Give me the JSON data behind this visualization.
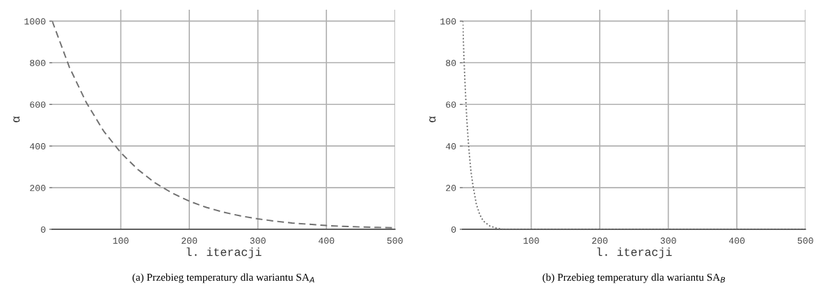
{
  "chart_data": [
    {
      "type": "line",
      "xlabel": "l. iteracji",
      "ylabel": "α",
      "annotations": [
        "(a) Przebieg temperatury dla wariantu SA$_{A}$"
      ],
      "x": [
        0,
        25,
        50,
        75,
        100,
        125,
        150,
        175,
        200,
        225,
        250,
        275,
        300,
        325,
        350,
        375,
        400,
        425,
        450,
        475,
        500
      ],
      "series": [
        {
          "color": "#707070",
          "values": [
            1000,
            779,
            607,
            472,
            368,
            287,
            223,
            174,
            135,
            105,
            82,
            64,
            50,
            39,
            30,
            24,
            18,
            14,
            11,
            9,
            7
          ]
        }
      ],
      "line_style": "dashed",
      "xlim": [
        0,
        500
      ],
      "ylim": [
        0,
        1055
      ],
      "xticks": [
        100,
        200,
        300,
        400,
        500
      ],
      "yticks": [
        0,
        200,
        400,
        600,
        800,
        1000
      ],
      "grid": true
    },
    {
      "type": "line",
      "xlabel": "l. iteracji",
      "ylabel": "α",
      "annotations": [
        "(b) Przebieg temperatury dla wariantu SA$_{B}$"
      ],
      "x": [
        0,
        2,
        4,
        6,
        8,
        10,
        12,
        15,
        20,
        25,
        30,
        40,
        50,
        60,
        80,
        100,
        200,
        300,
        400,
        500
      ],
      "series": [
        {
          "color": "#707070",
          "values": [
            100,
            81,
            66,
            53,
            43,
            35,
            28,
            21,
            12,
            7,
            4,
            1.5,
            0.5,
            0,
            0,
            0,
            0,
            0,
            0,
            0
          ]
        }
      ],
      "line_style": "dotted",
      "xlim": [
        0,
        500
      ],
      "ylim": [
        0,
        105.5
      ],
      "xticks": [
        100,
        200,
        300,
        400,
        500
      ],
      "yticks": [
        0,
        20,
        40,
        60,
        80,
        100
      ],
      "grid": true
    }
  ]
}
